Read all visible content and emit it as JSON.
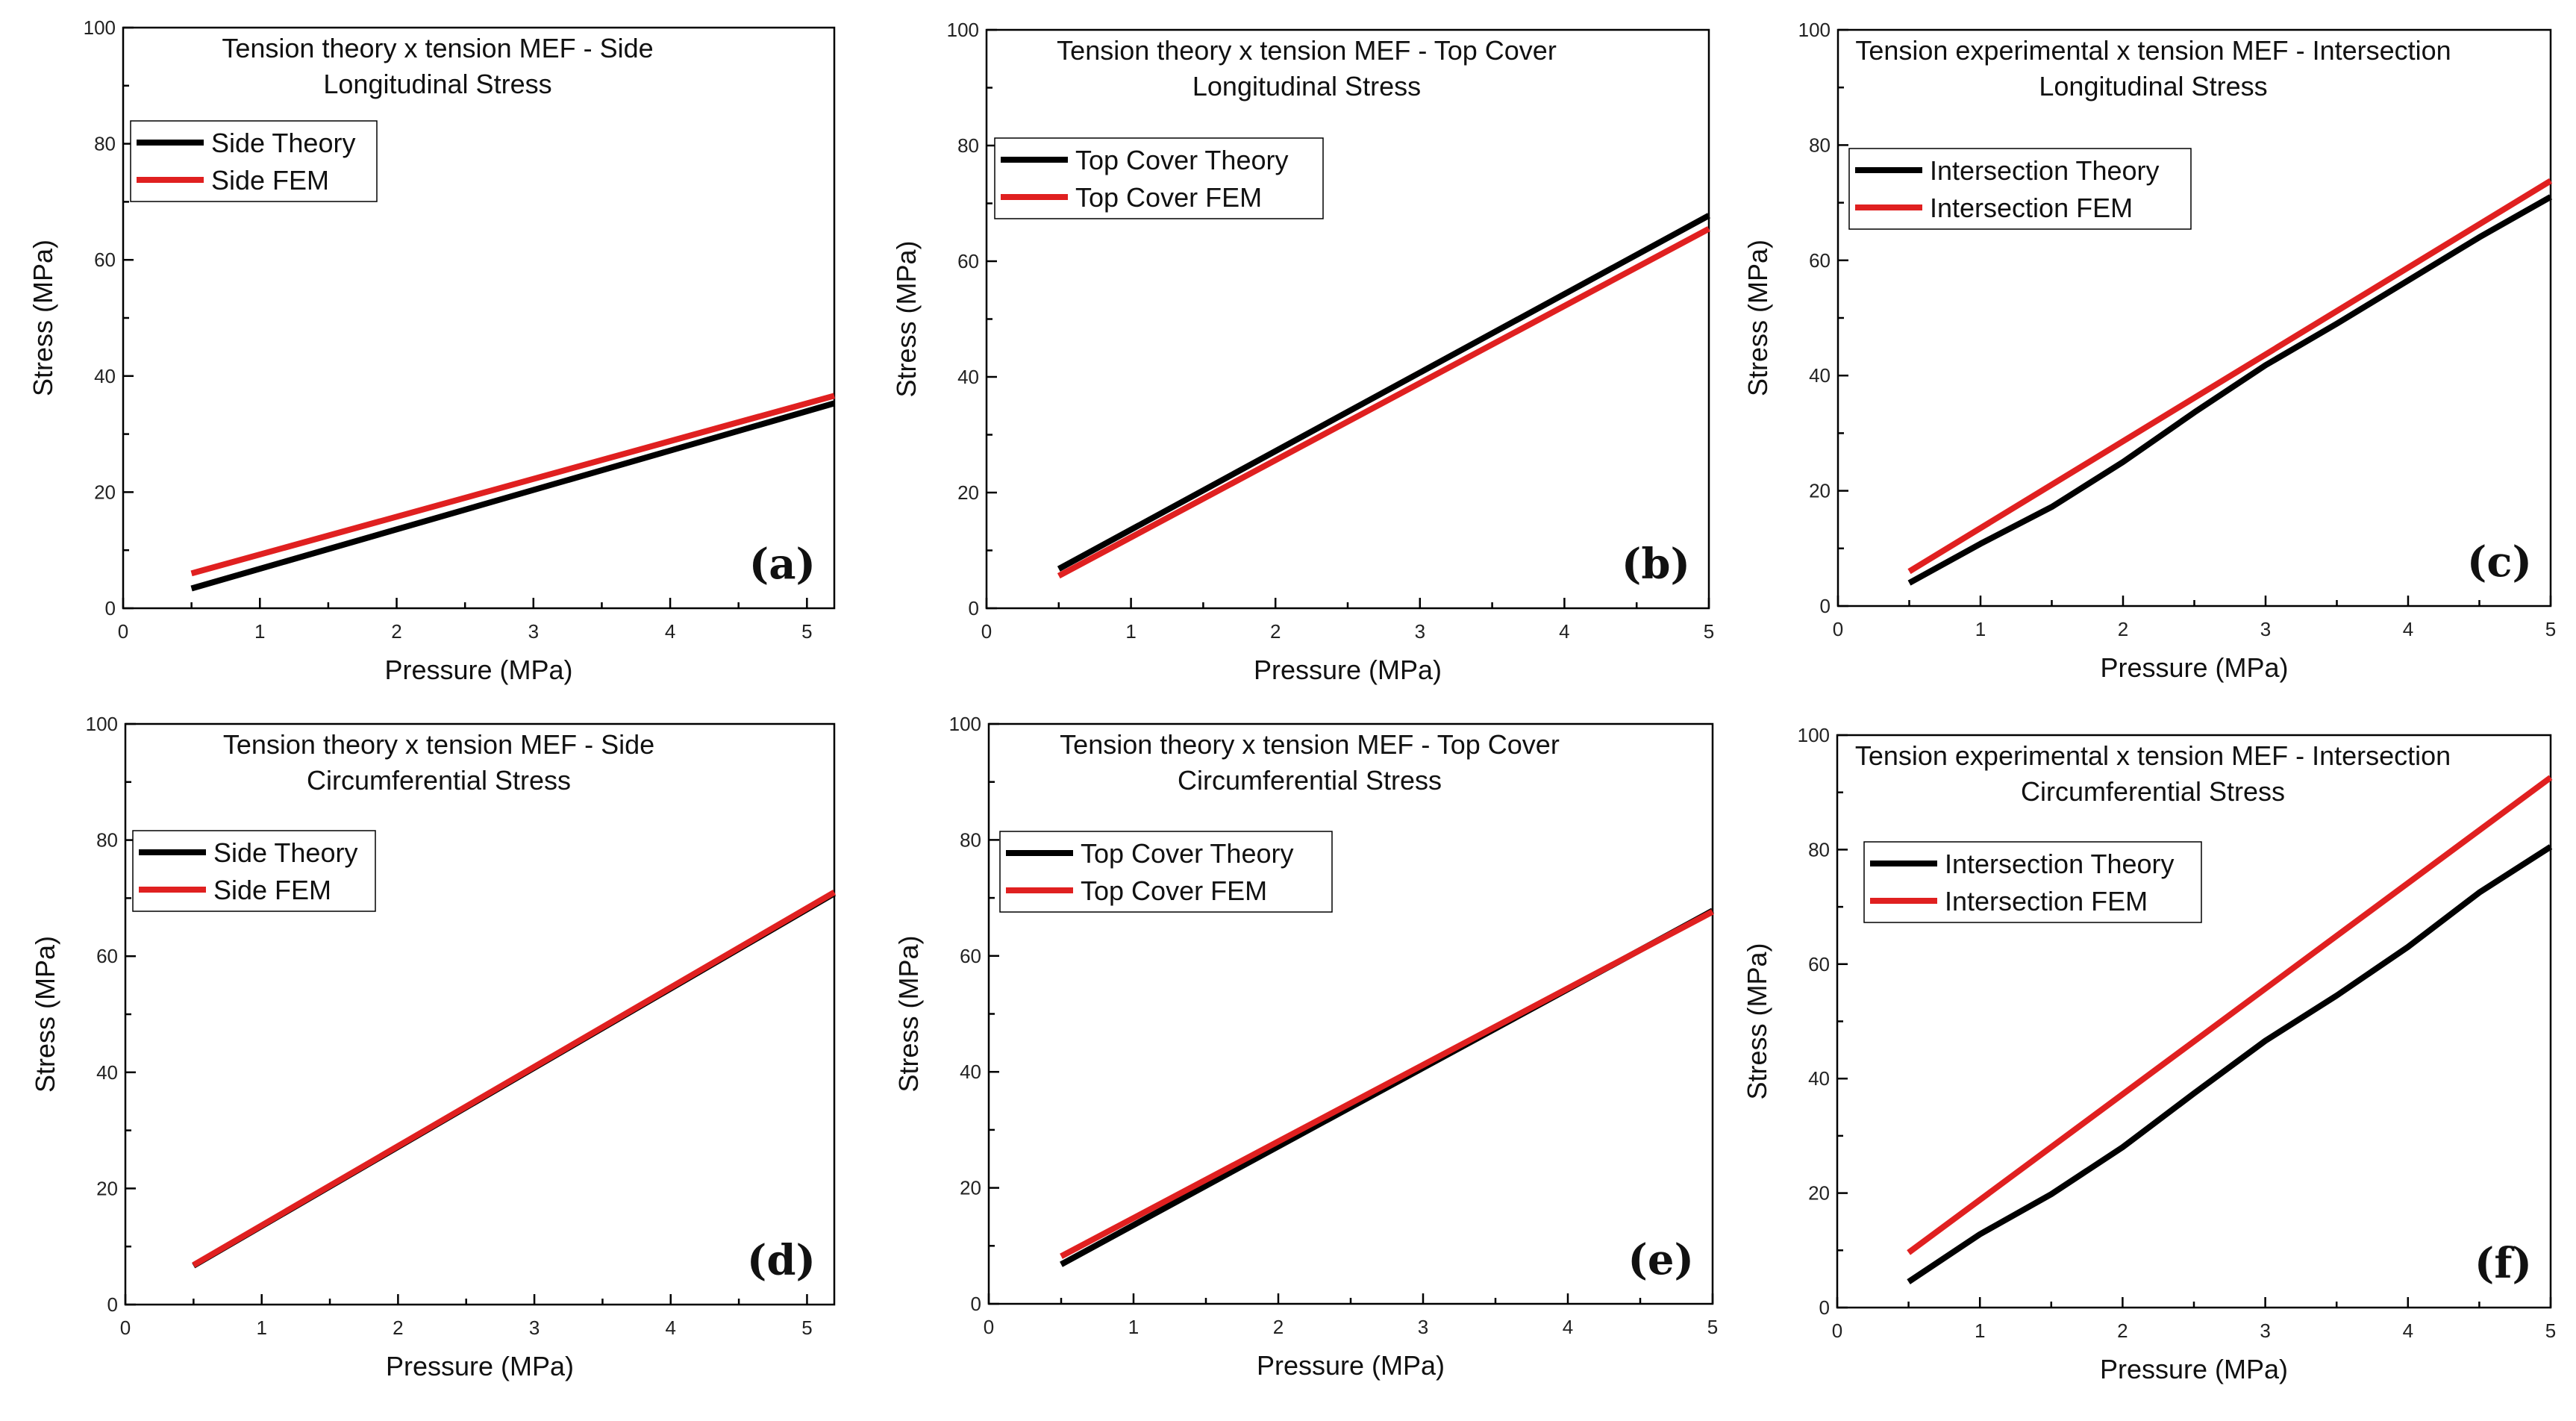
{
  "chart_data": [
    {
      "type": "line",
      "panel": "(a)",
      "title": [
        "Tension theory x tension MEF - Side",
        "Longitudinal Stress"
      ],
      "xlabel": "Pressure (MPa)",
      "ylabel": "Stress (MPa)",
      "xlim": [
        0,
        5.2
      ],
      "ylim": [
        0,
        100
      ],
      "xticks": [
        0,
        1,
        2,
        3,
        4,
        5
      ],
      "yticks": [
        0,
        20,
        40,
        60,
        80,
        100
      ],
      "legend_position": "top-left",
      "series": [
        {
          "name": "Side Theory",
          "color": "#000000",
          "x": [
            0.5,
            5.2
          ],
          "y": [
            3.4,
            35.3
          ]
        },
        {
          "name": "Side FEM",
          "color": "#e02020",
          "x": [
            0.5,
            5.2
          ],
          "y": [
            6.0,
            36.6
          ]
        }
      ]
    },
    {
      "type": "line",
      "panel": "(b)",
      "title": [
        "Tension theory x tension MEF - Top Cover",
        "Longitudinal Stress"
      ],
      "xlabel": "Pressure (MPa)",
      "ylabel": "Stress (MPa)",
      "xlim": [
        0,
        5
      ],
      "ylim": [
        0,
        100
      ],
      "xticks": [
        0,
        1,
        2,
        3,
        4,
        5
      ],
      "yticks": [
        0,
        20,
        40,
        60,
        80,
        100
      ],
      "legend_position": "top-left",
      "series": [
        {
          "name": "Top Cover Theory",
          "color": "#000000",
          "x": [
            0.5,
            5
          ],
          "y": [
            6.8,
            67.9
          ]
        },
        {
          "name": "Top Cover FEM",
          "color": "#e02020",
          "x": [
            0.5,
            5
          ],
          "y": [
            5.6,
            65.6
          ]
        }
      ]
    },
    {
      "type": "line",
      "panel": "(c)",
      "title": [
        "Tension experimental x tension MEF - Intersection",
        "Longitudinal Stress"
      ],
      "xlabel": "Pressure (MPa)",
      "ylabel": "Stress (MPa)",
      "xlim": [
        0,
        5
      ],
      "ylim": [
        0,
        100
      ],
      "xticks": [
        0,
        1,
        2,
        3,
        4,
        5
      ],
      "yticks": [
        0,
        20,
        40,
        60,
        80,
        100
      ],
      "legend_position": "top-left",
      "series": [
        {
          "name": "Intersection Theory",
          "color": "#000000",
          "x": [
            0.5,
            1,
            1.5,
            2,
            2.5,
            3,
            3.5,
            4,
            4.5,
            5
          ],
          "y": [
            4.0,
            10.8,
            17.2,
            25.0,
            33.6,
            41.8,
            49.0,
            56.5,
            64.0,
            71.0
          ]
        },
        {
          "name": "Intersection FEM",
          "color": "#e02020",
          "x": [
            0.5,
            5
          ],
          "y": [
            6.0,
            73.8
          ]
        }
      ]
    },
    {
      "type": "line",
      "panel": "(d)",
      "title": [
        "Tension theory x tension MEF - Side",
        "Circumferential Stress"
      ],
      "xlabel": "Pressure (MPa)",
      "ylabel": "Stress (MPa)",
      "xlim": [
        0,
        5.2
      ],
      "ylim": [
        0,
        100
      ],
      "xticks": [
        0,
        1,
        2,
        3,
        4,
        5
      ],
      "yticks": [
        0,
        20,
        40,
        60,
        80,
        100
      ],
      "legend_position": "top-left",
      "series": [
        {
          "name": "Side Theory",
          "color": "#000000",
          "x": [
            0.5,
            5.2
          ],
          "y": [
            6.7,
            70.8
          ]
        },
        {
          "name": "Side FEM",
          "color": "#e02020",
          "x": [
            0.5,
            5.2
          ],
          "y": [
            6.8,
            71.0
          ]
        }
      ]
    },
    {
      "type": "line",
      "panel": "(e)",
      "title": [
        "Tension theory x tension MEF - Top Cover",
        "Circumferential Stress"
      ],
      "xlabel": "Pressure (MPa)",
      "ylabel": "Stress (MPa)",
      "xlim": [
        0,
        5
      ],
      "ylim": [
        0,
        100
      ],
      "xticks": [
        0,
        1,
        2,
        3,
        4,
        5
      ],
      "yticks": [
        0,
        20,
        40,
        60,
        80,
        100
      ],
      "legend_position": "top-left",
      "series": [
        {
          "name": "Top Cover Theory",
          "color": "#000000",
          "x": [
            0.5,
            5
          ],
          "y": [
            6.8,
            67.8
          ]
        },
        {
          "name": "Top Cover FEM",
          "color": "#e02020",
          "x": [
            0.5,
            5
          ],
          "y": [
            8.2,
            67.6
          ]
        }
      ]
    },
    {
      "type": "line",
      "panel": "(f)",
      "title": [
        "Tension experimental x tension MEF - Intersection",
        "Circumferential Stress"
      ],
      "xlabel": "Pressure (MPa)",
      "ylabel": "Stress (MPa)",
      "xlim": [
        0,
        5
      ],
      "ylim": [
        0,
        100
      ],
      "xticks": [
        0,
        1,
        2,
        3,
        4,
        5
      ],
      "yticks": [
        0,
        20,
        40,
        60,
        80,
        100
      ],
      "legend_position": "top-left",
      "series": [
        {
          "name": "Intersection Theory",
          "color": "#000000",
          "x": [
            0.5,
            1,
            1.5,
            2,
            2.5,
            3,
            3.5,
            4,
            4.5,
            5
          ],
          "y": [
            4.5,
            12.8,
            19.8,
            28.0,
            37.4,
            46.6,
            54.5,
            63.0,
            72.5,
            80.5
          ]
        },
        {
          "name": "Intersection FEM",
          "color": "#e02020",
          "x": [
            0.5,
            5
          ],
          "y": [
            9.6,
            92.6
          ]
        }
      ]
    }
  ]
}
